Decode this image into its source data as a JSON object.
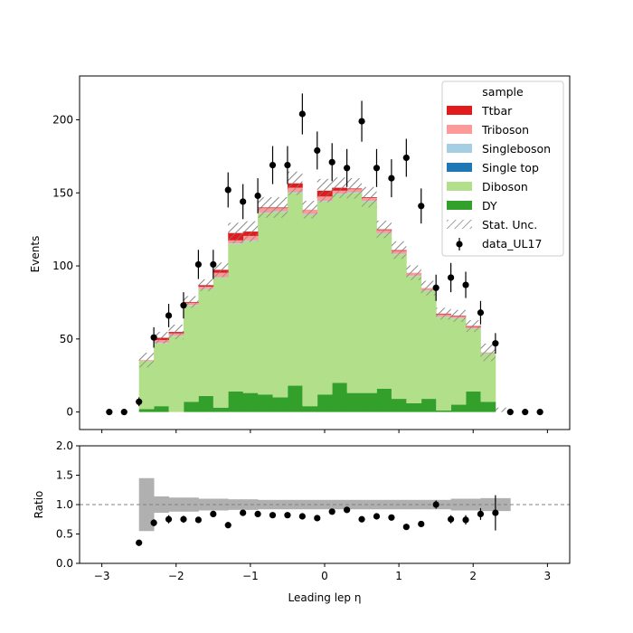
{
  "chart_data": [
    {
      "type": "bar",
      "stacked": true,
      "ylabel": "Events",
      "xlim": [
        -3.3,
        3.3
      ],
      "ylim": [
        -12,
        230
      ],
      "y_ticks": [
        0,
        50,
        100,
        150,
        200
      ],
      "legend": {
        "title": "sample",
        "placement": "top-right",
        "entries": [
          "Ttbar",
          "Triboson",
          "Singleboson",
          "Single top",
          "Diboson",
          "DY",
          "Stat. Unc.",
          "data_UL17"
        ]
      },
      "bin_edges": [
        -2.5,
        -2.3,
        -2.1,
        -1.9,
        -1.7,
        -1.5,
        -1.3,
        -1.1,
        -0.9,
        -0.7,
        -0.5,
        -0.3,
        -0.1,
        0.1,
        0.3,
        0.5,
        0.7,
        0.9,
        1.1,
        1.3,
        1.5,
        1.7,
        1.9,
        2.1,
        2.3,
        2.5
      ],
      "series": [
        {
          "name": "DY",
          "color": "#33a02c",
          "values": [
            2,
            4,
            0,
            7,
            11,
            3,
            14,
            13,
            12,
            10,
            18,
            4,
            12,
            20,
            13,
            13,
            16,
            9,
            6,
            9,
            1,
            5,
            14,
            7,
            0
          ]
        },
        {
          "name": "Diboson",
          "color": "#b2df8a",
          "values": [
            33,
            43,
            52,
            66,
            73,
            89,
            101,
            104,
            124,
            127,
            132,
            131,
            132,
            129,
            137,
            131,
            106,
            99,
            87,
            74,
            64,
            59,
            43,
            33,
            0
          ]
        },
        {
          "name": "Single top",
          "color": "#1f78b4",
          "values": [
            0,
            0,
            0,
            0,
            0,
            0,
            0,
            0,
            0,
            0,
            0,
            0,
            0,
            0,
            0,
            0,
            0,
            0,
            0,
            0,
            0,
            0,
            0,
            0,
            0
          ]
        },
        {
          "name": "Singleboson",
          "color": "#a6cee3",
          "values": [
            0,
            0.3,
            0.3,
            0.3,
            0.3,
            0.3,
            0.5,
            0.5,
            0.5,
            0.5,
            0.5,
            0.5,
            0.5,
            0.5,
            0.5,
            0.5,
            0.5,
            0.3,
            0.3,
            0.3,
            0.3,
            0.3,
            0.3,
            0.3,
            0
          ]
        },
        {
          "name": "Triboson",
          "color": "#fb9a99",
          "values": [
            0.5,
            2,
            1.5,
            1.5,
            1.5,
            3,
            2,
            3,
            3,
            2,
            3,
            3,
            3,
            2,
            2,
            2,
            2,
            2,
            2,
            1.5,
            1.5,
            1,
            1,
            0.5,
            0
          ]
        },
        {
          "name": "Ttbar",
          "color": "#e31a1c",
          "values": [
            0,
            1.5,
            1,
            0.5,
            1,
            2,
            5,
            3,
            0.5,
            0.5,
            3,
            0,
            4,
            2,
            0.5,
            0.5,
            0.5,
            0.5,
            0,
            0,
            0.5,
            0.5,
            0.5,
            0,
            0
          ]
        }
      ],
      "stat_unc": [
        5,
        4,
        5,
        4,
        4,
        5,
        7,
        7,
        7,
        7,
        8,
        6,
        8,
        7,
        7,
        7,
        6,
        6,
        5,
        5,
        4,
        4,
        4,
        6,
        3
      ],
      "data": {
        "name": "data_UL17",
        "x": [
          -2.9,
          -2.7,
          -2.5,
          -2.3,
          -2.1,
          -1.9,
          -1.7,
          -1.5,
          -1.3,
          -1.1,
          -0.9,
          -0.7,
          -0.5,
          -0.3,
          -0.1,
          0.1,
          0.3,
          0.5,
          0.7,
          0.9,
          1.1,
          1.3,
          1.5,
          1.7,
          1.9,
          2.1,
          2.3,
          2.5,
          2.7,
          2.9
        ],
        "y": [
          0,
          0,
          7,
          51,
          66,
          73,
          101,
          101,
          152,
          144,
          148,
          169,
          169,
          204,
          179,
          171,
          167,
          199,
          167,
          160,
          174,
          141,
          85,
          92,
          87,
          68,
          47,
          0,
          0,
          0
        ],
        "err": [
          0,
          0,
          3,
          7,
          8,
          9,
          10,
          10,
          12,
          12,
          12,
          13,
          13,
          14,
          13,
          13,
          13,
          14,
          13,
          13,
          13,
          12,
          9,
          10,
          9,
          8,
          7,
          0,
          0,
          0
        ]
      }
    },
    {
      "type": "scatter",
      "xlabel": "Leading lep η",
      "ylabel": "Ratio",
      "xlim": [
        -3.3,
        3.3
      ],
      "ylim": [
        0.0,
        2.0
      ],
      "x_ticks": [
        -3,
        -2,
        -1,
        0,
        1,
        2,
        3
      ],
      "y_ticks": [
        0.0,
        0.5,
        1.0,
        1.5,
        2.0
      ],
      "reference_line": 1.0,
      "unc_band_halfwidth": [
        0.45,
        0.14,
        0.12,
        0.12,
        0.1,
        0.1,
        0.09,
        0.09,
        0.08,
        0.08,
        0.08,
        0.08,
        0.08,
        0.08,
        0.08,
        0.08,
        0.08,
        0.08,
        0.08,
        0.08,
        0.08,
        0.1,
        0.1,
        0.11,
        0.11,
        0.12
      ],
      "ratio": {
        "x": [
          -2.5,
          -2.3,
          -2.1,
          -1.9,
          -1.7,
          -1.5,
          -1.3,
          -1.1,
          -0.9,
          -0.7,
          -0.5,
          -0.3,
          -0.1,
          0.1,
          0.3,
          0.5,
          0.7,
          0.9,
          1.1,
          1.3,
          1.5,
          1.7,
          1.9,
          2.1,
          2.3
        ],
        "y": [
          0.35,
          0.69,
          0.75,
          0.75,
          0.74,
          0.84,
          0.65,
          0.86,
          0.84,
          0.82,
          0.82,
          0.8,
          0.77,
          0.88,
          0.91,
          0.75,
          0.8,
          0.78,
          0.62,
          0.67,
          1.0,
          0.75,
          0.74,
          0.84,
          0.86
        ],
        "err": [
          0.03,
          0.06,
          0.07,
          0.06,
          0.05,
          0.05,
          0.04,
          0.05,
          0.05,
          0.04,
          0.04,
          0.04,
          0.04,
          0.04,
          0.04,
          0.04,
          0.04,
          0.05,
          0.04,
          0.05,
          0.07,
          0.07,
          0.08,
          0.1,
          0.3
        ]
      }
    }
  ]
}
